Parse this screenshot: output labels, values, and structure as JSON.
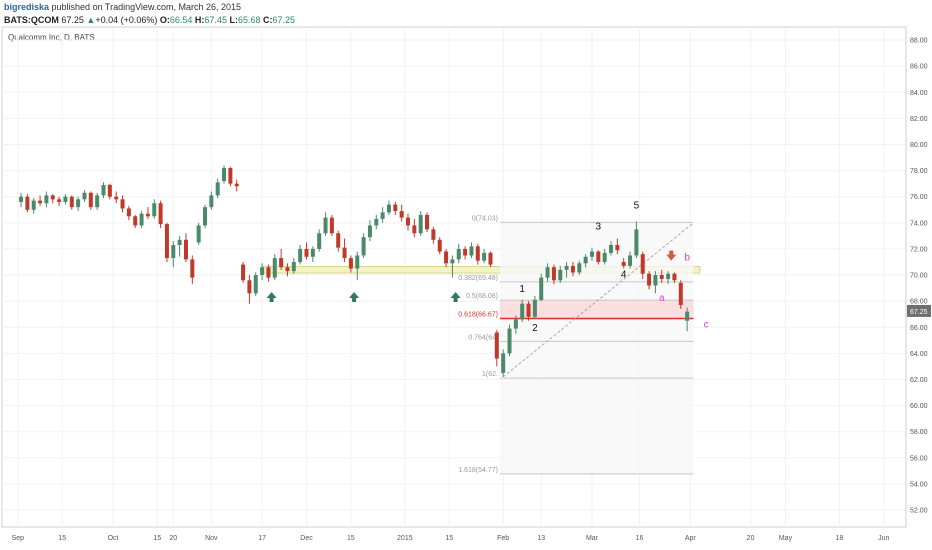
{
  "header": {
    "author": "bigrediska",
    "published": " published on TradingView.com, March 26, 2015",
    "symbol": "BATS:QCOM",
    "price": "67.25",
    "change": "+0.04 (+0.06%)",
    "ohlc_o_label": "O:",
    "ohlc_o": "66.54",
    "ohlc_h_label": "H:",
    "ohlc_h": "67.45",
    "ohlc_l_label": "L:",
    "ohlc_l": "65.68",
    "ohlc_c_label": "C:",
    "ohlc_c": "67.25"
  },
  "colors": {
    "up": "#4a8a6a",
    "down": "#c0392b",
    "fib_line": "#aaaaaa",
    "label_magenta": "#e040e0",
    "support_zone": "#f4f3c4",
    "fib_zone": "#fbd9d9",
    "fib_618": "#e03030",
    "axis_text": "#555555",
    "grid": "#f2f2f2",
    "price_badge": "#6f6f6f",
    "arrow_up": "#2f7a5a",
    "arrow_down": "#d9573b"
  },
  "chart_data": {
    "type": "candlestick",
    "title": "Qualcomm Inc, D, BATS",
    "ylim": [
      50.7,
      89
    ],
    "y_ticks": [
      "52.00",
      "54.00",
      "56.00",
      "58.00",
      "60.00",
      "62.00",
      "64.00",
      "66.00",
      "68.00",
      "70.00",
      "72.00",
      "74.00",
      "76.00",
      "78.00",
      "80.00",
      "82.00",
      "84.00",
      "86.00",
      "88.00"
    ],
    "last_price": "67.25",
    "x_ticks": [
      {
        "label": "Sep",
        "date": "2014-09-01"
      },
      {
        "label": "15",
        "date": "2014-09-15"
      },
      {
        "label": "Oct",
        "date": "2014-10-01"
      },
      {
        "label": "15",
        "date": "2014-10-15"
      },
      {
        "label": "20",
        "date": "2014-10-20"
      },
      {
        "label": "Nov",
        "date": "2014-11-01"
      },
      {
        "label": "17",
        "date": "2014-11-17"
      },
      {
        "label": "Dec",
        "date": "2014-12-01"
      },
      {
        "label": "15",
        "date": "2014-12-15"
      },
      {
        "label": "2015",
        "date": "2015-01-01"
      },
      {
        "label": "15",
        "date": "2015-01-15"
      },
      {
        "label": "Feb",
        "date": "2015-02-01"
      },
      {
        "label": "13",
        "date": "2015-02-13"
      },
      {
        "label": "Mar",
        "date": "2015-03-01"
      },
      {
        "label": "16",
        "date": "2015-03-16"
      },
      {
        "label": "Apr",
        "date": "2015-04-01"
      },
      {
        "label": "20",
        "date": "2015-04-20"
      },
      {
        "label": "May",
        "date": "2015-05-01"
      },
      {
        "label": "18",
        "date": "2015-05-18"
      },
      {
        "label": "Jun",
        "date": "2015-06-01"
      }
    ],
    "candles": [
      {
        "d": "2014-09-02",
        "o": 75.6,
        "h": 76.3,
        "l": 75.2,
        "c": 76.0
      },
      {
        "d": "2014-09-04",
        "o": 76.0,
        "h": 76.2,
        "l": 74.8,
        "c": 75.0
      },
      {
        "d": "2014-09-06",
        "o": 75.0,
        "h": 75.9,
        "l": 74.7,
        "c": 75.7
      },
      {
        "d": "2014-09-08",
        "o": 75.7,
        "h": 76.1,
        "l": 75.3,
        "c": 75.5
      },
      {
        "d": "2014-09-10",
        "o": 75.5,
        "h": 76.4,
        "l": 75.2,
        "c": 76.1
      },
      {
        "d": "2014-09-12",
        "o": 76.1,
        "h": 76.2,
        "l": 75.5,
        "c": 75.8
      },
      {
        "d": "2014-09-14",
        "o": 75.8,
        "h": 76.0,
        "l": 75.3,
        "c": 75.6
      },
      {
        "d": "2014-09-16",
        "o": 75.6,
        "h": 76.2,
        "l": 75.4,
        "c": 76.0
      },
      {
        "d": "2014-09-18",
        "o": 76.0,
        "h": 76.1,
        "l": 75.0,
        "c": 75.2
      },
      {
        "d": "2014-09-20",
        "o": 75.2,
        "h": 76.0,
        "l": 74.9,
        "c": 75.8
      },
      {
        "d": "2014-09-22",
        "o": 75.8,
        "h": 76.5,
        "l": 75.6,
        "c": 76.3
      },
      {
        "d": "2014-09-24",
        "o": 76.3,
        "h": 76.4,
        "l": 75.0,
        "c": 75.2
      },
      {
        "d": "2014-09-26",
        "o": 75.2,
        "h": 76.3,
        "l": 75.0,
        "c": 76.1
      },
      {
        "d": "2014-09-28",
        "o": 76.1,
        "h": 77.1,
        "l": 75.9,
        "c": 76.9
      },
      {
        "d": "2014-09-30",
        "o": 76.9,
        "h": 77.0,
        "l": 75.8,
        "c": 76.0
      },
      {
        "d": "2014-10-02",
        "o": 76.0,
        "h": 76.4,
        "l": 75.5,
        "c": 75.8
      },
      {
        "d": "2014-10-04",
        "o": 75.8,
        "h": 76.1,
        "l": 74.8,
        "c": 75.1
      },
      {
        "d": "2014-10-06",
        "o": 75.1,
        "h": 75.3,
        "l": 74.2,
        "c": 74.5
      },
      {
        "d": "2014-10-08",
        "o": 74.5,
        "h": 74.6,
        "l": 73.6,
        "c": 73.8
      },
      {
        "d": "2014-10-10",
        "o": 73.8,
        "h": 74.9,
        "l": 73.6,
        "c": 74.7
      },
      {
        "d": "2014-10-12",
        "o": 74.7,
        "h": 75.2,
        "l": 74.3,
        "c": 74.5
      },
      {
        "d": "2014-10-14",
        "o": 74.5,
        "h": 75.8,
        "l": 74.3,
        "c": 75.5
      },
      {
        "d": "2014-10-16",
        "o": 75.5,
        "h": 75.7,
        "l": 73.6,
        "c": 73.9
      },
      {
        "d": "2014-10-18",
        "o": 73.9,
        "h": 74.0,
        "l": 71.0,
        "c": 71.3
      },
      {
        "d": "2014-10-20",
        "o": 71.3,
        "h": 72.6,
        "l": 70.6,
        "c": 72.3
      },
      {
        "d": "2014-10-22",
        "o": 72.3,
        "h": 73.0,
        "l": 71.4,
        "c": 72.7
      },
      {
        "d": "2014-10-24",
        "o": 72.7,
        "h": 73.2,
        "l": 71.0,
        "c": 71.2
      },
      {
        "d": "2014-10-26",
        "o": 71.2,
        "h": 71.5,
        "l": 69.3,
        "c": 69.8
      },
      {
        "d": "2014-10-28",
        "o": 72.5,
        "h": 74.0,
        "l": 72.3,
        "c": 73.8
      },
      {
        "d": "2014-10-30",
        "o": 73.8,
        "h": 75.4,
        "l": 73.6,
        "c": 75.2
      },
      {
        "d": "2014-11-01",
        "o": 75.2,
        "h": 76.4,
        "l": 75.0,
        "c": 76.1
      },
      {
        "d": "2014-11-03",
        "o": 76.1,
        "h": 77.4,
        "l": 75.9,
        "c": 77.1
      },
      {
        "d": "2014-11-05",
        "o": 77.2,
        "h": 78.4,
        "l": 77.0,
        "c": 78.2
      },
      {
        "d": "2014-11-07",
        "o": 78.2,
        "h": 78.3,
        "l": 76.8,
        "c": 77.0
      },
      {
        "d": "2014-11-09",
        "o": 77.0,
        "h": 77.3,
        "l": 76.4,
        "c": 76.8
      },
      {
        "d": "2014-11-11",
        "o": 70.8,
        "h": 71.0,
        "l": 69.4,
        "c": 69.6
      },
      {
        "d": "2014-11-13",
        "o": 69.6,
        "h": 70.0,
        "l": 67.8,
        "c": 68.6
      },
      {
        "d": "2014-11-15",
        "o": 68.6,
        "h": 70.2,
        "l": 68.4,
        "c": 70.0
      },
      {
        "d": "2014-11-17",
        "o": 70.0,
        "h": 70.9,
        "l": 69.6,
        "c": 70.6
      },
      {
        "d": "2014-11-19",
        "o": 70.6,
        "h": 70.8,
        "l": 69.5,
        "c": 69.8
      },
      {
        "d": "2014-11-21",
        "o": 69.8,
        "h": 71.6,
        "l": 69.6,
        "c": 71.3
      },
      {
        "d": "2014-11-23",
        "o": 71.3,
        "h": 72.0,
        "l": 70.4,
        "c": 70.6
      },
      {
        "d": "2014-11-25",
        "o": 70.6,
        "h": 70.9,
        "l": 69.9,
        "c": 70.3
      },
      {
        "d": "2014-11-27",
        "o": 70.3,
        "h": 71.3,
        "l": 70.1,
        "c": 71.0
      },
      {
        "d": "2014-11-29",
        "o": 71.0,
        "h": 72.3,
        "l": 70.8,
        "c": 72.0
      },
      {
        "d": "2014-12-01",
        "o": 72.0,
        "h": 72.5,
        "l": 71.2,
        "c": 71.4
      },
      {
        "d": "2014-12-03",
        "o": 71.4,
        "h": 72.2,
        "l": 71.0,
        "c": 72.0
      },
      {
        "d": "2014-12-05",
        "o": 72.0,
        "h": 73.5,
        "l": 71.8,
        "c": 73.2
      },
      {
        "d": "2014-12-07",
        "o": 73.2,
        "h": 74.8,
        "l": 73.0,
        "c": 74.4
      },
      {
        "d": "2014-12-09",
        "o": 74.4,
        "h": 74.6,
        "l": 73.0,
        "c": 73.2
      },
      {
        "d": "2014-12-11",
        "o": 73.2,
        "h": 73.4,
        "l": 71.8,
        "c": 72.1
      },
      {
        "d": "2014-12-13",
        "o": 72.1,
        "h": 72.8,
        "l": 71.0,
        "c": 71.3
      },
      {
        "d": "2014-12-15",
        "o": 71.3,
        "h": 71.5,
        "l": 70.2,
        "c": 70.5
      },
      {
        "d": "2014-12-17",
        "o": 70.5,
        "h": 71.8,
        "l": 69.6,
        "c": 71.5
      },
      {
        "d": "2014-12-19",
        "o": 71.5,
        "h": 73.2,
        "l": 71.3,
        "c": 72.9
      },
      {
        "d": "2014-12-21",
        "o": 72.9,
        "h": 74.2,
        "l": 72.6,
        "c": 73.8
      },
      {
        "d": "2014-12-23",
        "o": 73.8,
        "h": 74.6,
        "l": 73.5,
        "c": 74.3
      },
      {
        "d": "2014-12-25",
        "o": 74.3,
        "h": 75.2,
        "l": 74.0,
        "c": 74.8
      },
      {
        "d": "2014-12-27",
        "o": 74.8,
        "h": 75.7,
        "l": 74.6,
        "c": 75.4
      },
      {
        "d": "2014-12-29",
        "o": 75.4,
        "h": 75.6,
        "l": 74.6,
        "c": 74.9
      },
      {
        "d": "2014-12-31",
        "o": 74.9,
        "h": 75.4,
        "l": 74.1,
        "c": 74.4
      },
      {
        "d": "2015-01-02",
        "o": 74.4,
        "h": 74.7,
        "l": 73.4,
        "c": 73.8
      },
      {
        "d": "2015-01-04",
        "o": 73.8,
        "h": 74.3,
        "l": 72.9,
        "c": 73.2
      },
      {
        "d": "2015-01-06",
        "o": 73.2,
        "h": 74.9,
        "l": 73.0,
        "c": 74.6
      },
      {
        "d": "2015-01-08",
        "o": 74.6,
        "h": 74.8,
        "l": 73.3,
        "c": 73.5
      },
      {
        "d": "2015-01-10",
        "o": 73.5,
        "h": 73.7,
        "l": 72.4,
        "c": 72.7
      },
      {
        "d": "2015-01-12",
        "o": 72.7,
        "h": 72.9,
        "l": 71.6,
        "c": 71.8
      },
      {
        "d": "2015-01-14",
        "o": 71.8,
        "h": 72.0,
        "l": 70.6,
        "c": 70.9
      },
      {
        "d": "2015-01-16",
        "o": 70.9,
        "h": 71.5,
        "l": 69.8,
        "c": 71.2
      },
      {
        "d": "2015-01-18",
        "o": 71.2,
        "h": 72.4,
        "l": 70.9,
        "c": 72.0
      },
      {
        "d": "2015-01-20",
        "o": 72.0,
        "h": 72.2,
        "l": 71.2,
        "c": 71.5
      },
      {
        "d": "2015-01-22",
        "o": 71.5,
        "h": 72.5,
        "l": 71.3,
        "c": 72.2
      },
      {
        "d": "2015-01-24",
        "o": 72.2,
        "h": 72.4,
        "l": 70.8,
        "c": 71.1
      },
      {
        "d": "2015-01-26",
        "o": 71.1,
        "h": 72.0,
        "l": 70.9,
        "c": 71.7
      },
      {
        "d": "2015-01-28",
        "o": 71.7,
        "h": 71.8,
        "l": 70.6,
        "c": 70.8
      },
      {
        "d": "2015-01-30",
        "o": 65.6,
        "h": 65.8,
        "l": 63.0,
        "c": 63.6
      },
      {
        "d": "2015-02-01",
        "o": 62.5,
        "h": 64.3,
        "l": 62.2,
        "c": 64.0
      },
      {
        "d": "2015-02-03",
        "o": 64.0,
        "h": 66.2,
        "l": 63.8,
        "c": 65.9
      },
      {
        "d": "2015-02-05",
        "o": 65.9,
        "h": 66.9,
        "l": 65.5,
        "c": 66.6
      },
      {
        "d": "2015-02-07",
        "o": 66.6,
        "h": 68.1,
        "l": 66.4,
        "c": 67.8
      },
      {
        "d": "2015-02-09",
        "o": 67.8,
        "h": 68.0,
        "l": 66.5,
        "c": 66.8
      },
      {
        "d": "2015-02-11",
        "o": 66.8,
        "h": 68.4,
        "l": 66.6,
        "c": 68.1
      },
      {
        "d": "2015-02-13",
        "o": 68.1,
        "h": 70.1,
        "l": 68.0,
        "c": 69.8
      },
      {
        "d": "2015-02-15",
        "o": 69.8,
        "h": 70.9,
        "l": 69.5,
        "c": 70.6
      },
      {
        "d": "2015-02-17",
        "o": 70.6,
        "h": 70.8,
        "l": 69.3,
        "c": 69.6
      },
      {
        "d": "2015-02-19",
        "o": 69.6,
        "h": 70.7,
        "l": 69.4,
        "c": 70.4
      },
      {
        "d": "2015-02-21",
        "o": 70.4,
        "h": 71.0,
        "l": 69.8,
        "c": 70.7
      },
      {
        "d": "2015-02-23",
        "o": 70.7,
        "h": 71.0,
        "l": 69.9,
        "c": 70.2
      },
      {
        "d": "2015-02-25",
        "o": 70.2,
        "h": 71.1,
        "l": 70.0,
        "c": 70.9
      },
      {
        "d": "2015-02-27",
        "o": 70.9,
        "h": 71.6,
        "l": 70.6,
        "c": 71.4
      },
      {
        "d": "2015-03-01",
        "o": 71.4,
        "h": 72.1,
        "l": 71.1,
        "c": 71.8
      },
      {
        "d": "2015-03-03",
        "o": 71.8,
        "h": 71.9,
        "l": 70.8,
        "c": 71.0
      },
      {
        "d": "2015-03-05",
        "o": 71.0,
        "h": 72.0,
        "l": 70.8,
        "c": 71.7
      },
      {
        "d": "2015-03-07",
        "o": 71.7,
        "h": 72.6,
        "l": 71.5,
        "c": 72.3
      },
      {
        "d": "2015-03-09",
        "o": 72.3,
        "h": 72.8,
        "l": 71.6,
        "c": 71.9
      },
      {
        "d": "2015-03-11",
        "o": 71.0,
        "h": 71.3,
        "l": 70.5,
        "c": 70.7
      },
      {
        "d": "2015-03-13",
        "o": 70.7,
        "h": 71.8,
        "l": 70.5,
        "c": 71.5
      },
      {
        "d": "2015-03-15",
        "o": 71.5,
        "h": 74.1,
        "l": 71.3,
        "c": 73.5
      },
      {
        "d": "2015-03-17",
        "o": 71.6,
        "h": 71.8,
        "l": 69.7,
        "c": 70.1
      },
      {
        "d": "2015-03-19",
        "o": 70.1,
        "h": 70.3,
        "l": 68.9,
        "c": 69.2
      },
      {
        "d": "2015-03-21",
        "o": 69.2,
        "h": 70.3,
        "l": 68.6,
        "c": 70.0
      },
      {
        "d": "2015-03-23",
        "o": 70.0,
        "h": 70.4,
        "l": 69.4,
        "c": 69.7
      },
      {
        "d": "2015-03-25",
        "o": 69.7,
        "h": 70.3,
        "l": 69.3,
        "c": 70.1
      },
      {
        "d": "2015-03-27",
        "o": 70.1,
        "h": 70.2,
        "l": 69.4,
        "c": 69.6
      },
      {
        "d": "2015-03-29",
        "o": 69.4,
        "h": 69.6,
        "l": 67.4,
        "c": 67.7
      },
      {
        "d": "2015-03-31",
        "o": 66.5,
        "h": 67.5,
        "l": 65.7,
        "c": 67.2
      }
    ],
    "fib_levels": [
      {
        "label": "0(74.03)",
        "value": 74.03
      },
      {
        "label": "0.382(69.48)",
        "value": 69.48
      },
      {
        "label": "0.5(68.08)",
        "value": 68.08
      },
      {
        "label": "0.618(66.67)",
        "value": 66.67
      },
      {
        "label": "0.764(64.",
        "value": 64.92
      },
      {
        "label": "1(62.",
        "value": 62.1
      },
      {
        "label": "1.618(54.77)",
        "value": 54.77
      }
    ],
    "support_zone": [
      70.15,
      70.65
    ],
    "wave_labels": [
      {
        "text": "1",
        "d": "2015-02-07",
        "v": 68.7
      },
      {
        "text": "2",
        "d": "2015-02-11",
        "v": 65.7
      },
      {
        "text": "3",
        "d": "2015-03-03",
        "v": 73.5
      },
      {
        "text": "4",
        "d": "2015-03-11",
        "v": 69.8
      },
      {
        "text": "5",
        "d": "2015-03-15",
        "v": 75.1
      },
      {
        "text": "a",
        "d": "2015-03-23",
        "v": 68.0
      },
      {
        "text": "b",
        "d": "2015-03-31",
        "v": 71.1
      },
      {
        "text": "c",
        "d": "2015-04-06",
        "v": 66.0
      }
    ],
    "up_arrows": [
      {
        "d": "2014-11-20",
        "v": 68.7
      },
      {
        "d": "2014-12-16",
        "v": 68.7
      },
      {
        "d": "2015-01-17",
        "v": 68.7
      }
    ],
    "down_arrows": [
      {
        "d": "2015-03-26",
        "v": 71.1
      }
    ],
    "trend_line": {
      "d1": "2015-02-01",
      "v1": 62.2,
      "d2": "2015-04-02",
      "v2": 74.0
    }
  }
}
